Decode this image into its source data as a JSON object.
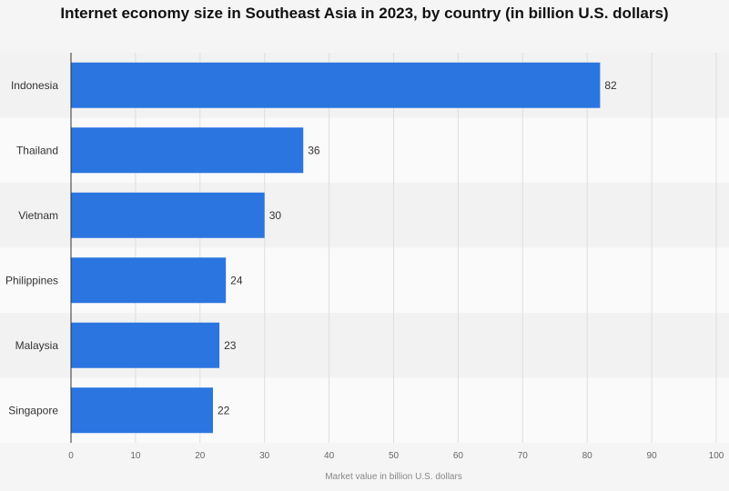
{
  "chart_data": {
    "type": "bar",
    "orientation": "horizontal",
    "title": "Internet economy size in Southeast Asia in 2023, by country (in billion U.S. dollars)",
    "categories": [
      "Indonesia",
      "Thailand",
      "Vietnam",
      "Philippines",
      "Malaysia",
      "Singapore"
    ],
    "values": [
      82,
      36,
      30,
      24,
      23,
      22
    ],
    "value_labels": [
      "82",
      "36",
      "30",
      "24",
      "23",
      "22"
    ],
    "xlabel": "Market value in billion U.S. dollars",
    "ylabel": "",
    "xlim": [
      0,
      100
    ],
    "ticks": [
      0,
      10,
      20,
      30,
      40,
      50,
      60,
      70,
      80,
      90,
      100
    ],
    "tick_labels": [
      "0",
      "10",
      "20",
      "30",
      "40",
      "50",
      "60",
      "70",
      "80",
      "90",
      "100"
    ],
    "grid": true,
    "legend": "none",
    "bar_color": "#2a75e0",
    "band_colors": [
      "#f2f2f2",
      "#fafafa"
    ]
  }
}
